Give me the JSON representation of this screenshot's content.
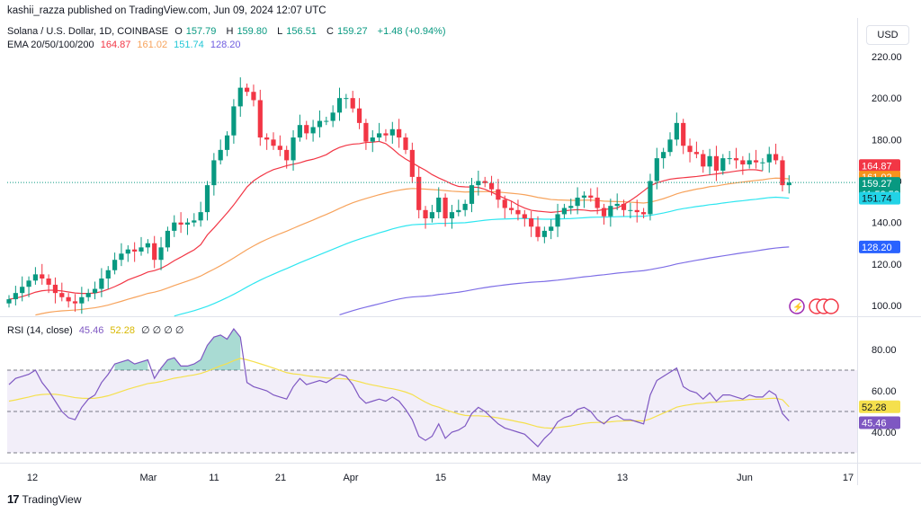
{
  "publish_line": "kashii_razza published on TradingView.com, Jun 09, 2024 12:07 UTC",
  "currency_button": "USD",
  "branding": "TradingView",
  "legend": {
    "symbol": "Solana / U.S. Dollar, 1D, COINBASE",
    "o_label": "O",
    "o": "157.79",
    "h_label": "H",
    "h": "159.80",
    "l_label": "L",
    "l": "156.51",
    "c_label": "C",
    "c": "159.27",
    "change": "+1.48 (+0.94%)",
    "ema_label": "EMA 20/50/100/200",
    "ema20": "164.87",
    "ema50": "161.02",
    "ema100": "151.74",
    "ema200": "128.20",
    "rsi_label": "RSI (14, close)",
    "rsi": "45.46",
    "rsi_ma": "52.28",
    "rsi_extra": "∅ ∅ ∅ ∅"
  },
  "colors": {
    "up": "#089981",
    "down": "#f23645",
    "ema20": "#f23645",
    "ema50": "#f7a35c",
    "ema100": "#2ee6f0",
    "ema200": "#7e6ee6",
    "rsi": "#7e57c2",
    "rsi_ma": "#f5e04d",
    "rsi_band": "#7e57c2"
  },
  "chart_data": [
    {
      "type": "candlestick",
      "title": "Solana / U.S. Dollar, 1D, COINBASE",
      "ylim": [
        95,
        228
      ],
      "y_ticks": [
        100,
        120,
        140,
        160,
        180,
        200,
        220
      ],
      "y_tick_labels": [
        "100.00",
        "120.00",
        "140.00",
        "160.00",
        "180.00",
        "200.00",
        "220.00"
      ],
      "x_tick_labels": [
        "12",
        "Mar",
        "11",
        "21",
        "Apr",
        "15",
        "May",
        "13",
        "Jun",
        "17"
      ],
      "last_price": "159.27",
      "countdown": "11:52:53",
      "price_labels": [
        {
          "name": "EMA 20",
          "value": "164.87"
        },
        {
          "name": "EMA 50",
          "value": "161.02"
        },
        {
          "name": "EMA 100",
          "value": "151.74"
        },
        {
          "name": "EMA 200",
          "value": "128.20"
        }
      ],
      "closes": [
        103,
        106,
        109,
        112,
        115,
        113,
        110,
        106,
        104,
        102,
        101,
        104,
        106,
        108,
        113,
        117,
        122,
        125,
        127,
        126,
        128,
        130,
        122,
        128,
        136,
        140,
        139,
        140,
        141,
        145,
        158,
        170,
        175,
        182,
        196,
        205,
        203,
        199,
        181,
        180,
        177,
        175,
        170,
        181,
        187,
        183,
        186,
        189,
        189,
        193,
        200,
        200,
        195,
        188,
        179,
        181,
        183,
        182,
        185,
        181,
        175,
        162,
        146,
        142,
        145,
        152,
        142,
        145,
        146,
        149,
        158,
        160,
        159,
        156,
        151,
        147,
        146,
        144,
        142,
        138,
        133,
        136,
        138,
        144,
        147,
        148,
        152,
        153,
        152,
        147,
        143,
        148,
        149,
        146,
        146,
        145,
        144,
        160,
        171,
        174,
        180,
        188,
        177,
        174,
        173,
        167,
        172,
        165,
        171,
        171,
        170,
        168,
        170,
        169,
        169,
        173,
        170,
        158,
        159.27
      ],
      "ema20": [
        103,
        103.5,
        104.3,
        105.3,
        106.4,
        107.1,
        107.4,
        107.3,
        107.0,
        106.5,
        106.0,
        105.8,
        105.8,
        106.0,
        106.7,
        107.8,
        109.1,
        110.6,
        112.3,
        113.5,
        114.7,
        116.1,
        116.8,
        117.9,
        119.6,
        121.6,
        123.3,
        125.1,
        126.8,
        129.3,
        134.0,
        137.4,
        141.0,
        144.6,
        148.5,
        152.8,
        157.1,
        160.1,
        162.2,
        164.0,
        165.5,
        166.4,
        167.4,
        168.1,
        168.8,
        169.8,
        170.5,
        171.5,
        172.7,
        174.7,
        176.2,
        177.2,
        177.8,
        178.0,
        178.6,
        178.7,
        179.1,
        178.0,
        175.6,
        172.8,
        170.6,
        168.8,
        166.9,
        165.2,
        163.1,
        161.5,
        160.1,
        158.5,
        157.4,
        157.2,
        157.1,
        156.9,
        156.0,
        154.6,
        153.1,
        151.6,
        150.3,
        148.4,
        147.0,
        145.9,
        145.5,
        145.2,
        144.9,
        145.2,
        145.6,
        146.0,
        146.2,
        146.0,
        145.6,
        145.7,
        146.3,
        146.6,
        147.0,
        148.7,
        150.6,
        152.8,
        155.2,
        157.7,
        159.1,
        160.1,
        160.9,
        161.3,
        161.6,
        161.9,
        162.2,
        162.6,
        163.0,
        163.4,
        163.9,
        164.3,
        164.8,
        165.2,
        165.5,
        165.4,
        164.87
      ],
      "ema50": [
        93,
        93.4,
        93.9,
        94.6,
        95.4,
        96.1,
        96.7,
        97.1,
        97.4,
        97.6,
        97.8,
        98.1,
        98.5,
        98.9,
        99.5,
        100.2,
        101.1,
        102.0,
        103.0,
        103.9,
        104.8,
        105.8,
        106.4,
        107.3,
        108.4,
        109.6,
        110.7,
        111.8,
        112.9,
        114.2,
        115.9,
        117.5,
        119.2,
        121.0,
        122.9,
        124.9,
        126.9,
        128.7,
        130.4,
        131.9,
        133.3,
        134.6,
        135.8,
        137.2,
        138.6,
        139.9,
        141.2,
        142.6,
        143.9,
        145.3,
        146.8,
        148.2,
        149.5,
        150.6,
        151.6,
        152.5,
        153.4,
        154.2,
        155.0,
        155.6,
        156.1,
        156.4,
        156.3,
        156.1,
        155.9,
        155.7,
        155.4,
        155.1,
        154.9,
        154.7,
        154.8,
        154.9,
        154.9,
        154.9,
        154.7,
        154.4,
        154.1,
        153.8,
        153.4,
        152.8,
        152.1,
        151.6,
        151.1,
        150.9,
        150.8,
        150.7,
        150.7,
        150.8,
        150.8,
        150.6,
        150.3,
        150.2,
        150.1,
        150.0,
        149.8,
        149.6,
        149.4,
        149.8,
        150.6,
        151.5,
        152.6,
        153.8,
        154.7,
        155.4,
        156.1,
        156.6,
        157.3,
        157.6,
        158.2,
        158.7,
        159.1,
        159.5,
        159.9,
        160.3,
        160.6,
        161.1,
        161.4,
        161.3,
        161.02
      ],
      "ema100": [
        80,
        80.5,
        81.1,
        81.7,
        82.4,
        83.0,
        83.6,
        84.1,
        84.5,
        84.9,
        85.3,
        85.7,
        86.1,
        86.6,
        87.1,
        87.7,
        88.4,
        89.1,
        89.8,
        90.5,
        91.2,
        91.9,
        92.5,
        93.2,
        94.0,
        94.9,
        95.8,
        96.6,
        97.5,
        98.5,
        99.6,
        100.9,
        102.3,
        103.8,
        105.4,
        107.1,
        108.9,
        110.6,
        112.2,
        113.7,
        115.1,
        116.5,
        117.8,
        119.2,
        120.6,
        121.9,
        123.2,
        124.5,
        125.8,
        127.1,
        128.4,
        129.7,
        130.9,
        132.0,
        133.0,
        134.0,
        135.0,
        135.9,
        136.9,
        137.7,
        138.4,
        138.9,
        139.1,
        139.2,
        139.3,
        139.6,
        139.6,
        139.7,
        139.8,
        139.9,
        140.3,
        140.7,
        141.1,
        141.4,
        141.6,
        141.7,
        141.8,
        141.9,
        141.9,
        141.8,
        141.7,
        141.6,
        141.6,
        141.7,
        141.8,
        141.9,
        142.1,
        142.3,
        142.5,
        142.6,
        142.6,
        142.7,
        142.8,
        142.9,
        142.9,
        143.0,
        143.0,
        143.4,
        144.0,
        144.6,
        145.3,
        146.1,
        146.7,
        147.2,
        147.7,
        148.1,
        148.6,
        148.9,
        149.4,
        149.8,
        150.2,
        150.5,
        150.9,
        151.2,
        151.6,
        152.0,
        152.2,
        152.0,
        151.74
      ],
      "ema200": [
        60,
        60.5,
        61.0,
        61.5,
        62.0,
        62.5,
        63.0,
        63.5,
        64.0,
        64.5,
        65.0,
        65.5,
        66.0,
        66.5,
        67.0,
        67.5,
        68.0,
        68.5,
        69.0,
        69.5,
        70.0,
        70.5,
        71.0,
        71.5,
        72.0,
        72.5,
        73.0,
        73.5,
        74.0,
        74.6,
        75.3,
        76.1,
        77.0,
        78.0,
        79.1,
        80.3,
        81.5,
        82.6,
        83.6,
        84.6,
        85.5,
        86.4,
        87.3,
        88.3,
        89.3,
        90.3,
        91.3,
        92.3,
        93.3,
        94.4,
        95.5,
        96.5,
        97.5,
        98.4,
        99.2,
        100.0,
        100.8,
        101.6,
        102.4,
        103.1,
        103.7,
        104.1,
        104.3,
        104.5,
        104.8,
        105.3,
        105.6,
        106.0,
        106.4,
        106.9,
        107.5,
        108.1,
        108.6,
        109.1,
        109.5,
        109.9,
        110.3,
        110.6,
        110.9,
        111.2,
        111.4,
        111.6,
        111.9,
        112.2,
        112.6,
        113.0,
        113.4,
        113.8,
        114.1,
        114.5,
        114.8,
        115.2,
        115.6,
        115.9,
        116.2,
        116.5,
        116.8,
        117.3,
        117.9,
        118.5,
        119.2,
        120.0,
        120.6,
        121.2,
        121.8,
        122.3,
        122.9,
        123.4,
        123.9,
        124.4,
        124.9,
        125.4,
        125.8,
        126.3,
        126.8,
        127.3,
        127.7,
        128.0,
        128.2
      ]
    },
    {
      "type": "line",
      "title": "RSI (14, close)",
      "ylim": [
        28,
        92
      ],
      "y_ticks": [
        40,
        60,
        80
      ],
      "y_tick_labels": [
        "40.00",
        "60.00",
        "80.00"
      ],
      "bands": [
        30,
        50,
        70
      ],
      "value_labels": [
        "52.28",
        "45.46"
      ],
      "series": [
        {
          "name": "RSI",
          "values": [
            63,
            66,
            67,
            68,
            70,
            64,
            60,
            55,
            50,
            47,
            46,
            52,
            56,
            58,
            64,
            68,
            73,
            74,
            75,
            73,
            74,
            75,
            66,
            71,
            75,
            76,
            72,
            72,
            73,
            75,
            82,
            86,
            87,
            85,
            90,
            86,
            64,
            62,
            61,
            60,
            58,
            57,
            56,
            62,
            66,
            63,
            64,
            65,
            64,
            66,
            68,
            67,
            63,
            57,
            54,
            55,
            56,
            55,
            57,
            55,
            51,
            46,
            38,
            36,
            38,
            44,
            37,
            40,
            41,
            43,
            49,
            52,
            50,
            47,
            44,
            42,
            41,
            40,
            39,
            36,
            33,
            37,
            40,
            45,
            47,
            48,
            51,
            52,
            50,
            46,
            44,
            47,
            48,
            46,
            46,
            45,
            44,
            58,
            65,
            67,
            69,
            71,
            62,
            60,
            59,
            56,
            59,
            55,
            58,
            58,
            57,
            56,
            58,
            57,
            57,
            60,
            58,
            49,
            45.46
          ]
        },
        {
          "name": "RSI MA",
          "values": [
            55,
            55.6,
            56.3,
            57.0,
            57.8,
            58.2,
            58.4,
            58.3,
            57.9,
            57.3,
            56.7,
            56.4,
            56.3,
            56.4,
            56.9,
            57.6,
            58.6,
            59.7,
            60.8,
            61.7,
            62.6,
            63.5,
            63.9,
            64.5,
            65.3,
            66.1,
            66.6,
            67.2,
            67.7,
            68.4,
            69.5,
            70.8,
            72.1,
            73.2,
            74.6,
            75.7,
            75.0,
            74.1,
            73.1,
            72.1,
            71.0,
            69.9,
            68.8,
            68.2,
            67.9,
            67.3,
            66.9,
            66.6,
            66.2,
            66.0,
            65.9,
            65.7,
            65.2,
            64.4,
            63.5,
            62.8,
            62.2,
            61.5,
            61.0,
            60.3,
            59.4,
            58.2,
            56.3,
            54.5,
            53.0,
            52.1,
            50.8,
            49.8,
            48.8,
            48.1,
            47.9,
            47.9,
            47.7,
            47.4,
            46.9,
            46.3,
            45.7,
            45.0,
            44.4,
            43.5,
            42.6,
            42.1,
            41.9,
            42.2,
            42.6,
            43.0,
            43.6,
            44.2,
            44.6,
            44.7,
            44.7,
            45.0,
            45.3,
            45.4,
            45.5,
            45.5,
            45.4,
            46.4,
            47.8,
            49.2,
            50.6,
            52.1,
            52.8,
            53.3,
            53.8,
            54.0,
            54.4,
            54.5,
            54.8,
            55.1,
            55.3,
            55.5,
            55.8,
            55.9,
            56.0,
            56.3,
            56.4,
            55.7,
            52.28
          ]
        }
      ]
    }
  ]
}
